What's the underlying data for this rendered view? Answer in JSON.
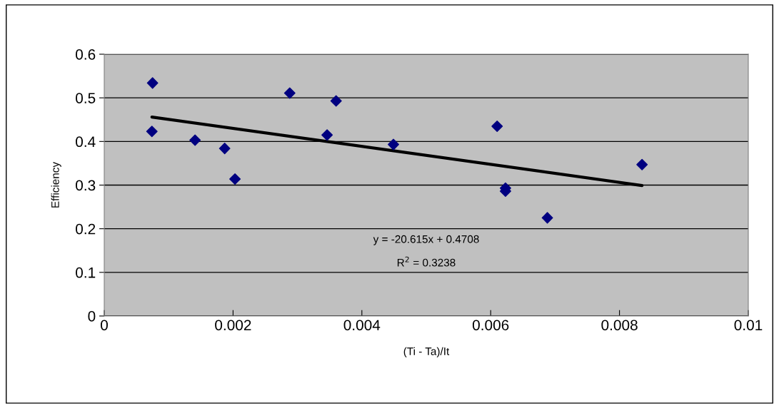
{
  "chart_data": {
    "type": "scatter",
    "xlabel": "(Ti - Ta)/It",
    "ylabel": "Efficiency",
    "xlim": [
      0,
      0.01
    ],
    "xticks": [
      0,
      0.002,
      0.004,
      0.006,
      0.008,
      0.01
    ],
    "ylim": [
      0,
      0.6
    ],
    "yticks": [
      0,
      0.1,
      0.2,
      0.3,
      0.4,
      0.5,
      0.6
    ],
    "grid": "y",
    "series": [
      {
        "marker": "diamond",
        "color": "#000080",
        "x": [
          0.00075,
          0.00074,
          0.00141,
          0.00187,
          0.00203,
          0.00288,
          0.00346,
          0.0036,
          0.00449,
          0.0061,
          0.00623,
          0.00623,
          0.00688,
          0.00835
        ],
        "values": [
          0.534,
          0.423,
          0.403,
          0.384,
          0.314,
          0.511,
          0.415,
          0.493,
          0.393,
          0.435,
          0.293,
          0.286,
          0.225,
          0.347
        ]
      },
      {
        "type": "line",
        "color": "#000000",
        "line_style": "solid",
        "x": [
          0.00074,
          0.00835
        ],
        "values": [
          0.456,
          0.299
        ]
      }
    ],
    "annotations": [
      "y = -20.615x + 0.4708",
      "R$^{2}$ = 0.3238"
    ]
  }
}
